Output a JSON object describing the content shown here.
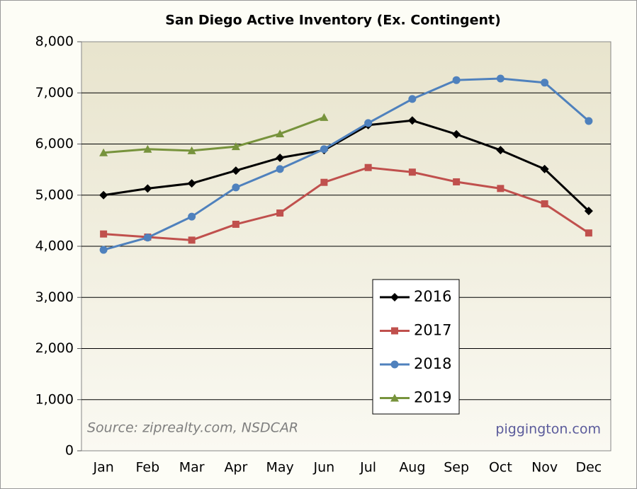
{
  "chart_data": {
    "type": "line",
    "title": "San Diego Active Inventory (Ex. Contingent)",
    "categories": [
      "Jan",
      "Feb",
      "Mar",
      "Apr",
      "May",
      "Jun",
      "Jul",
      "Aug",
      "Sep",
      "Oct",
      "Nov",
      "Dec"
    ],
    "series": [
      {
        "name": "2016",
        "color": "#000000",
        "marker": "diamond",
        "values": [
          5000,
          5130,
          5230,
          5480,
          5730,
          5880,
          6370,
          6460,
          6190,
          5880,
          5510,
          4690
        ]
      },
      {
        "name": "2017",
        "color": "#c0504d",
        "marker": "square",
        "values": [
          4240,
          4180,
          4120,
          4430,
          4650,
          5250,
          5540,
          5450,
          5260,
          5130,
          4830,
          4260
        ]
      },
      {
        "name": "2018",
        "color": "#4f81bd",
        "marker": "circle",
        "values": [
          3930,
          4170,
          4580,
          5150,
          5510,
          5900,
          6410,
          6880,
          7250,
          7280,
          7200,
          6450
        ]
      },
      {
        "name": "2019",
        "color": "#77933c",
        "marker": "triangle",
        "values": [
          5830,
          5900,
          5870,
          5950,
          6200,
          6520,
          null,
          null,
          null,
          null,
          null,
          null
        ]
      }
    ],
    "ylim": [
      0,
      8000
    ],
    "yticks": [
      0,
      {
        "value": 1000,
        "label": "1,000"
      },
      {
        "value": 2000,
        "label": "2,000"
      },
      {
        "value": 3000,
        "label": "3,000"
      },
      {
        "value": 4000,
        "label": "4,000"
      },
      {
        "value": 5000,
        "label": "5,000"
      },
      {
        "value": 6000,
        "label": "6,000"
      },
      {
        "value": 7000,
        "label": "7,000"
      },
      {
        "value": 8000,
        "label": "8,000"
      }
    ],
    "grid": true,
    "annotations": [
      "Source: ziprealty.com, NSDCAR",
      "piggington.com"
    ]
  }
}
